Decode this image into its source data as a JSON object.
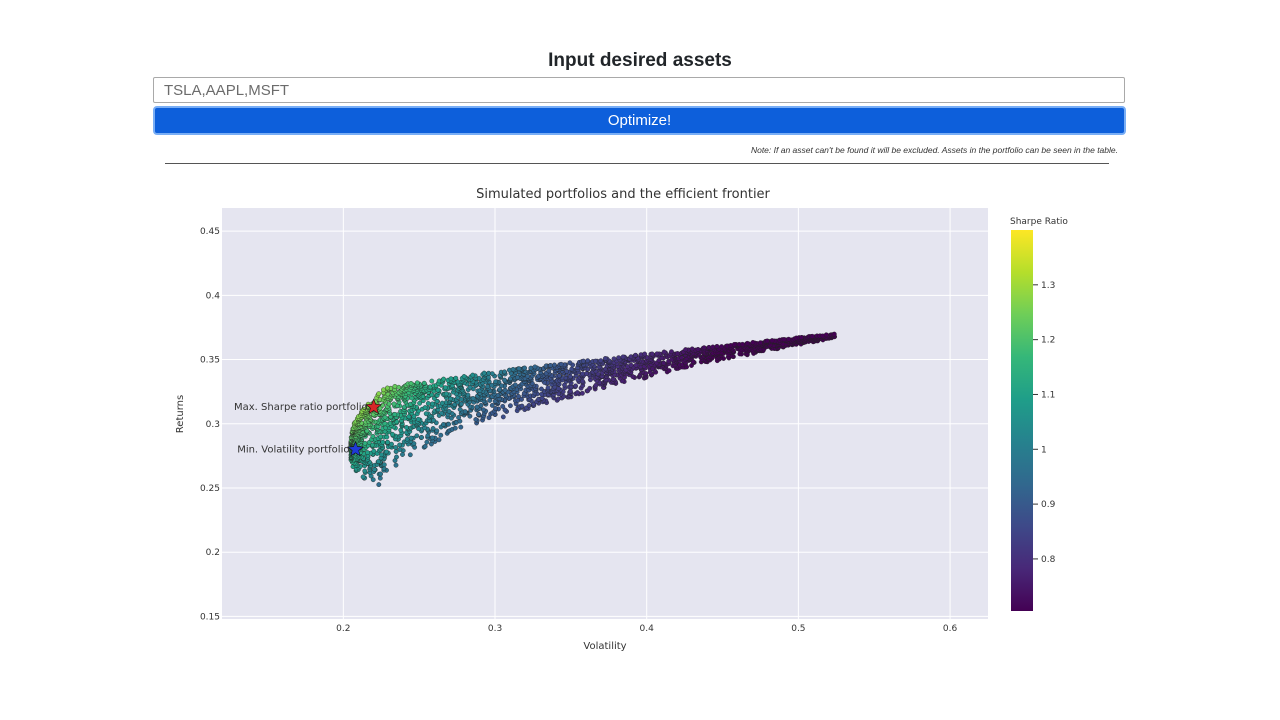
{
  "form": {
    "heading": "Input desired assets",
    "input_value": "TSLA,AAPL,MSFT",
    "button_label": "Optimize!",
    "note": "Note: If an asset can't be found it will be excluded. Assets in the portfolio can be seen in the table."
  },
  "chart_data": {
    "type": "scatter",
    "title": "Simulated portfolios and the efficient frontier",
    "xlabel": "Volatility",
    "ylabel": "Returns",
    "xlim": [
      0.12,
      0.625
    ],
    "ylim": [
      0.148,
      0.468
    ],
    "x_ticks": [
      {
        "v": 0.2,
        "label": "0.2"
      },
      {
        "v": 0.3,
        "label": "0.3"
      },
      {
        "v": 0.4,
        "label": "0.4"
      },
      {
        "v": 0.5,
        "label": "0.5"
      },
      {
        "v": 0.6,
        "label": "0.6"
      }
    ],
    "y_ticks": [
      {
        "v": 0.15,
        "label": "0.15"
      },
      {
        "v": 0.2,
        "label": "0.2"
      },
      {
        "v": 0.25,
        "label": "0.25"
      },
      {
        "v": 0.3,
        "label": "0.3"
      },
      {
        "v": 0.35,
        "label": "0.35"
      },
      {
        "v": 0.4,
        "label": "0.4"
      },
      {
        "v": 0.45,
        "label": "0.45"
      }
    ],
    "grid": true,
    "colorbar": {
      "title": "Sharpe Ratio",
      "range": [
        0.705,
        1.4
      ],
      "ticks": [
        {
          "v": 0.8,
          "label": "0.8"
        },
        {
          "v": 0.9,
          "label": "0.9"
        },
        {
          "v": 1.0,
          "label": "1"
        },
        {
          "v": 1.1,
          "label": "1.1"
        },
        {
          "v": 1.2,
          "label": "1.2"
        },
        {
          "v": 1.3,
          "label": "1.3"
        }
      ],
      "colorscale": [
        "#440154",
        "#482878",
        "#3e4989",
        "#31688e",
        "#26828e",
        "#1f9e89",
        "#35b779",
        "#6ece58",
        "#b5de2b",
        "#fde725"
      ]
    },
    "simulated_points": {
      "count": 2200,
      "x_range": [
        0.205,
        0.524
      ],
      "y_range": [
        0.249,
        0.37
      ],
      "sharpe_range": [
        0.705,
        1.4
      ]
    },
    "markers": [
      {
        "name": "Max. Sharpe ratio portfolio",
        "x": 0.22,
        "y": 0.313,
        "symbol": "star",
        "color": "#d62728"
      },
      {
        "name": "Min. Volatility portfolio",
        "x": 0.208,
        "y": 0.28,
        "symbol": "star",
        "color": "#1f3ad6"
      }
    ]
  }
}
